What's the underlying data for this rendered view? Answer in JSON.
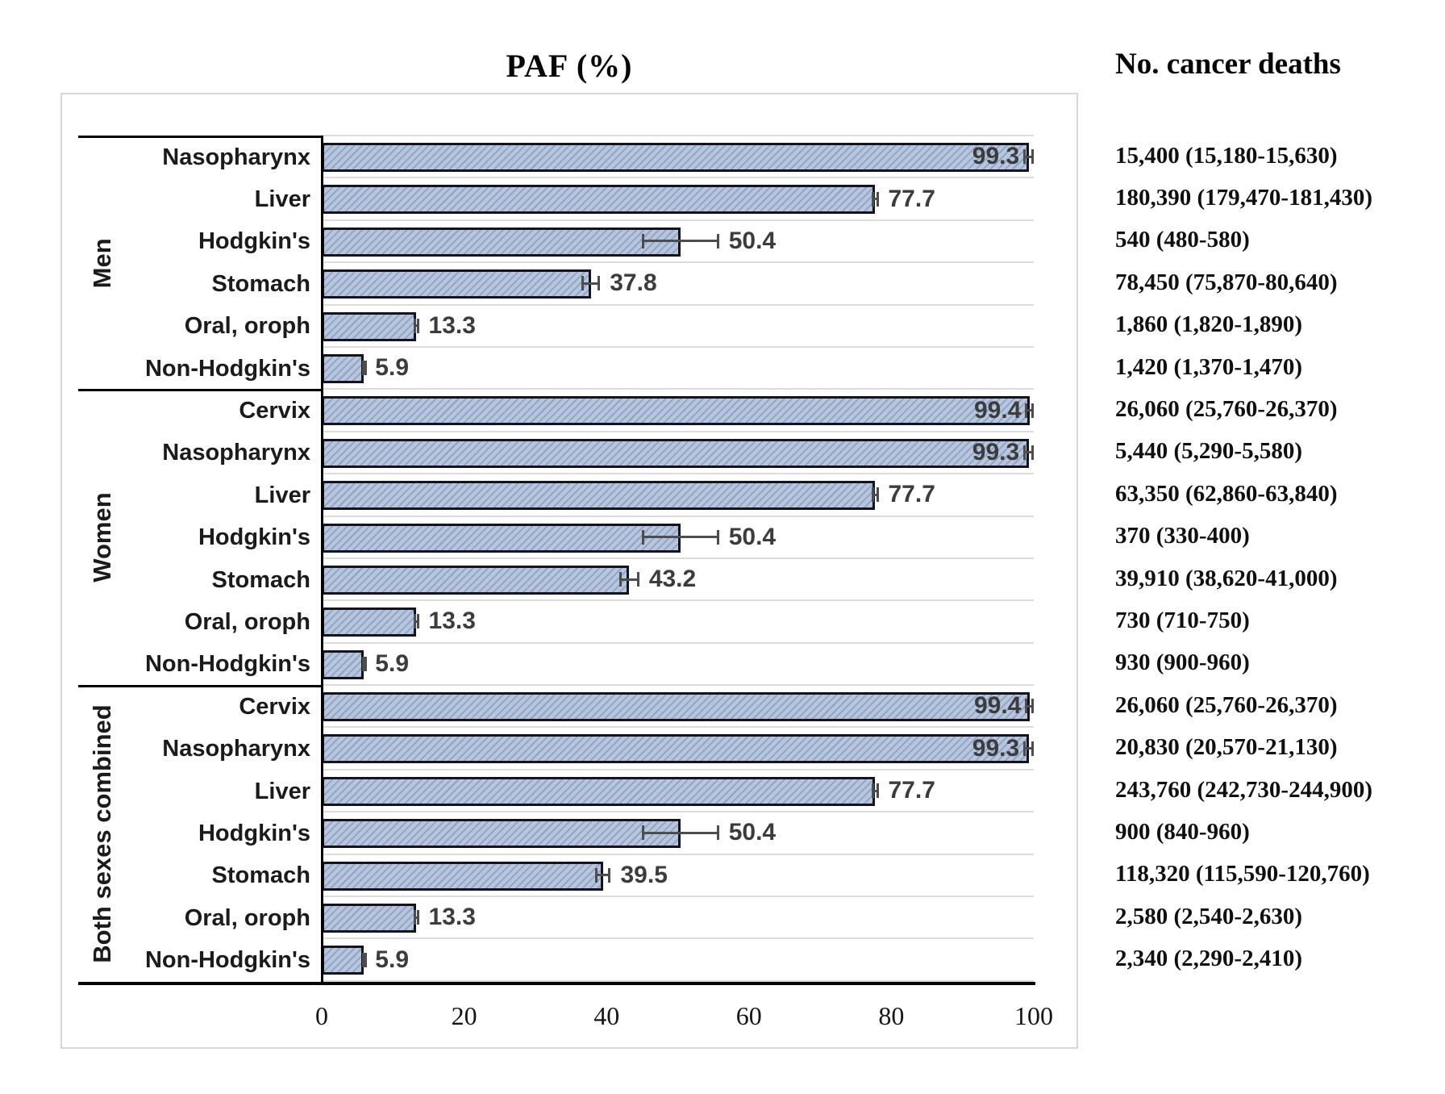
{
  "title": "PAF (%)",
  "deaths_header": "No. cancer deaths",
  "colors": {
    "bar_fill": "#b4c2da",
    "bar_hatch": "#8ea3c4",
    "bar_border": "#14141e",
    "error_bar": "#4d4d4d",
    "gridline": "#dcdcdc",
    "group_border": "#000000",
    "frame_border": "#d7d7d7",
    "value_label": "#3c3c3c"
  },
  "chart_data": {
    "type": "bar",
    "orientation": "horizontal",
    "title": "PAF (%)",
    "xlabel": "PAF (%)",
    "xlim": [
      0,
      100
    ],
    "x_ticks": [
      0,
      20,
      40,
      60,
      80,
      100
    ],
    "grid": true,
    "right_column_header": "No. cancer deaths",
    "groups": [
      {
        "name": "Men",
        "rows": [
          {
            "category": "Nasopharynx",
            "paf": 99.3,
            "paf_label": "99.3",
            "err": 0.75,
            "label_inside": true,
            "deaths": "15,400 (15,180-15,630)"
          },
          {
            "category": "Liver",
            "paf": 77.7,
            "paf_label": "77.7",
            "err": 0.5,
            "label_inside": false,
            "deaths": "180,390 (179,470-181,430)"
          },
          {
            "category": "Hodgkin's",
            "paf": 50.4,
            "paf_label": "50.4",
            "err": 5.4,
            "label_inside": false,
            "deaths": "540 (480-580)"
          },
          {
            "category": "Stomach",
            "paf": 37.8,
            "paf_label": "37.8",
            "err": 1.3,
            "label_inside": false,
            "deaths": "78,450 (75,870-80,640)"
          },
          {
            "category": "Oral, oroph",
            "paf": 13.3,
            "paf_label": "13.3",
            "err": 0.35,
            "label_inside": false,
            "deaths": "1,860 (1,820-1,890)"
          },
          {
            "category": "Non-Hodgkin's",
            "paf": 5.9,
            "paf_label": "5.9",
            "err": 0.25,
            "label_inside": false,
            "deaths": "1,420 (1,370-1,470)"
          }
        ]
      },
      {
        "name": "Women",
        "rows": [
          {
            "category": "Cervix",
            "paf": 99.4,
            "paf_label": "99.4",
            "err": 0.6,
            "label_inside": true,
            "deaths": "26,060 (25,760-26,370)"
          },
          {
            "category": "Nasopharynx",
            "paf": 99.3,
            "paf_label": "99.3",
            "err": 0.75,
            "label_inside": true,
            "deaths": "5,440 (5,290-5,580)"
          },
          {
            "category": "Liver",
            "paf": 77.7,
            "paf_label": "77.7",
            "err": 0.5,
            "label_inside": false,
            "deaths": "63,350 (62,860-63,840)"
          },
          {
            "category": "Hodgkin's",
            "paf": 50.4,
            "paf_label": "50.4",
            "err": 5.4,
            "label_inside": false,
            "deaths": "370 (330-400)"
          },
          {
            "category": "Stomach",
            "paf": 43.2,
            "paf_label": "43.2",
            "err": 1.4,
            "label_inside": false,
            "deaths": "39,910 (38,620-41,000)"
          },
          {
            "category": "Oral, oroph",
            "paf": 13.3,
            "paf_label": "13.3",
            "err": 0.35,
            "label_inside": false,
            "deaths": "730 (710-750)"
          },
          {
            "category": "Non-Hodgkin's",
            "paf": 5.9,
            "paf_label": "5.9",
            "err": 0.25,
            "label_inside": false,
            "deaths": "930 (900-960)"
          }
        ]
      },
      {
        "name": "Both sexes combined",
        "rows": [
          {
            "category": "Cervix",
            "paf": 99.4,
            "paf_label": "99.4",
            "err": 0.6,
            "label_inside": true,
            "deaths": "26,060 (25,760-26,370)"
          },
          {
            "category": "Nasopharynx",
            "paf": 99.3,
            "paf_label": "99.3",
            "err": 0.75,
            "label_inside": true,
            "deaths": "20,830 (20,570-21,130)"
          },
          {
            "category": "Liver",
            "paf": 77.7,
            "paf_label": "77.7",
            "err": 0.5,
            "label_inside": false,
            "deaths": "243,760 (242,730-244,900)"
          },
          {
            "category": "Hodgkin's",
            "paf": 50.4,
            "paf_label": "50.4",
            "err": 5.4,
            "label_inside": false,
            "deaths": "900 (840-960)"
          },
          {
            "category": "Stomach",
            "paf": 39.5,
            "paf_label": "39.5",
            "err": 1.1,
            "label_inside": false,
            "deaths": "118,320 (115,590-120,760)"
          },
          {
            "category": "Oral, oroph",
            "paf": 13.3,
            "paf_label": "13.3",
            "err": 0.35,
            "label_inside": false,
            "deaths": "2,580 (2,540-2,630)"
          },
          {
            "category": "Non-Hodgkin's",
            "paf": 5.9,
            "paf_label": "5.9",
            "err": 0.25,
            "label_inside": false,
            "deaths": "2,340 (2,290-2,410)"
          }
        ]
      }
    ]
  }
}
